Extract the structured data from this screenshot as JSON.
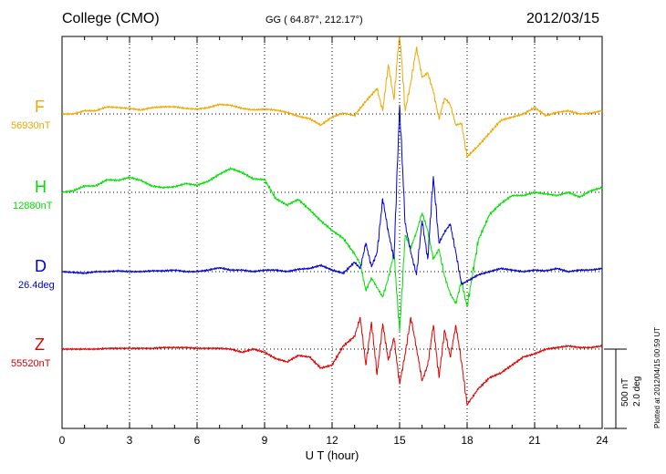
{
  "header": {
    "station": "College (CMO)",
    "coords": "GG ( 64.87°, 212.17°)",
    "date": "2012/03/15"
  },
  "components": [
    {
      "key": "F",
      "label": "F",
      "base": "56930nT",
      "color": "#f0a800"
    },
    {
      "key": "H",
      "label": "H",
      "base": "12880nT",
      "color": "#00e000"
    },
    {
      "key": "D",
      "label": "D",
      "base": "26.4deg",
      "color": "#0000d0"
    },
    {
      "key": "Z",
      "label": "Z",
      "base": "55520nT",
      "color": "#e00000"
    }
  ],
  "scale": {
    "nt": "500 nT",
    "deg": "2.0 deg"
  },
  "plotted": "Plotted at 2012/04/15 00:59 UT",
  "chart_data": {
    "type": "line",
    "title": "College (CMO)",
    "xlabel": "U T (hour)",
    "ylabel": "",
    "xlim": [
      0,
      24
    ],
    "xticks": [
      0,
      3,
      6,
      9,
      12,
      15,
      18,
      21,
      24
    ],
    "xtick_labels": [
      "0",
      "3",
      "6",
      "9",
      "12",
      "15",
      "18",
      "21",
      "24"
    ],
    "units": "nT",
    "grid": true,
    "series": [
      {
        "name": "F",
        "x": [
          0,
          0.5,
          1,
          1.5,
          2,
          2.5,
          3,
          3.5,
          4,
          4.5,
          5,
          5.5,
          6,
          6.5,
          7,
          7.5,
          8,
          8.5,
          9,
          9.5,
          10,
          10.5,
          11,
          11.5,
          12,
          12.5,
          13,
          13.5,
          14,
          14.25,
          14.5,
          14.75,
          15,
          15.25,
          15.5,
          15.75,
          16,
          16.25,
          16.5,
          16.75,
          17,
          17.25,
          17.5,
          17.75,
          18,
          18.5,
          19,
          19.5,
          20,
          20.5,
          21,
          21.5,
          22,
          22.5,
          23,
          23.5,
          24
        ],
        "y": [
          0,
          0,
          20,
          20,
          45,
          40,
          35,
          25,
          40,
          45,
          45,
          35,
          30,
          40,
          60,
          55,
          35,
          25,
          30,
          25,
          10,
          -15,
          -30,
          -70,
          -20,
          5,
          -10,
          80,
          160,
          20,
          310,
          90,
          520,
          20,
          200,
          420,
          230,
          260,
          140,
          -30,
          100,
          60,
          -70,
          -60,
          -270,
          -200,
          -120,
          -40,
          -20,
          0,
          40,
          -10,
          10,
          20,
          0,
          5,
          20
        ]
      },
      {
        "name": "H",
        "x": [
          0,
          0.5,
          1,
          1.5,
          2,
          2.5,
          3,
          3.5,
          4,
          4.5,
          5,
          5.5,
          6,
          6.5,
          7,
          7.5,
          8,
          8.5,
          9,
          9.5,
          10,
          10.5,
          11,
          11.5,
          12,
          12.5,
          13,
          13.25,
          13.5,
          13.75,
          14,
          14.25,
          14.5,
          14.75,
          15,
          15.25,
          15.5,
          15.75,
          16,
          16.25,
          16.5,
          16.75,
          17,
          17.25,
          17.5,
          17.75,
          18,
          18.5,
          19,
          19.5,
          20,
          20.5,
          21,
          21.5,
          22,
          22.5,
          23,
          23.5,
          24
        ],
        "y": [
          0,
          10,
          40,
          40,
          80,
          75,
          95,
          75,
          40,
          30,
          35,
          55,
          45,
          70,
          115,
          150,
          125,
          85,
          80,
          -40,
          -80,
          -45,
          -110,
          -180,
          -240,
          -290,
          -390,
          -450,
          -620,
          -540,
          -600,
          -660,
          -540,
          -380,
          -880,
          -270,
          -350,
          -250,
          -130,
          -240,
          -420,
          -360,
          -530,
          -640,
          -700,
          -560,
          -720,
          -300,
          -140,
          -70,
          -20,
          -20,
          0,
          -10,
          -20,
          0,
          -30,
          10,
          30
        ]
      },
      {
        "name": "D",
        "x": [
          0,
          0.5,
          1,
          1.5,
          2,
          2.5,
          3,
          3.5,
          4,
          4.5,
          5,
          5.5,
          6,
          6.5,
          7,
          7.5,
          8,
          8.5,
          9,
          9.5,
          10,
          10.5,
          11,
          11.5,
          12,
          12.5,
          13,
          13.25,
          13.5,
          13.75,
          14,
          14.25,
          14.5,
          14.75,
          15,
          15.25,
          15.5,
          15.75,
          16,
          16.25,
          16.5,
          16.75,
          17,
          17.25,
          17.5,
          17.75,
          18,
          18.5,
          19,
          19.5,
          20,
          20.5,
          21,
          21.5,
          22,
          22.5,
          23,
          23.5,
          24
        ],
        "y": [
          0,
          -5,
          -10,
          0,
          0,
          5,
          0,
          0,
          5,
          5,
          10,
          0,
          0,
          10,
          25,
          10,
          10,
          0,
          10,
          10,
          0,
          15,
          20,
          40,
          10,
          -10,
          60,
          20,
          180,
          30,
          120,
          460,
          250,
          80,
          1050,
          300,
          120,
          -20,
          320,
          80,
          600,
          180,
          250,
          300,
          120,
          -80,
          -60,
          -20,
          0,
          20,
          10,
          0,
          10,
          5,
          20,
          0,
          10,
          10,
          20
        ]
      },
      {
        "name": "Z",
        "x": [
          0,
          0.5,
          1,
          1.5,
          2,
          2.5,
          3,
          3.5,
          4,
          4.5,
          5,
          5.5,
          6,
          6.5,
          7,
          7.5,
          8,
          8.5,
          9,
          9.5,
          10,
          10.5,
          11,
          11.5,
          12,
          12.5,
          13,
          13.25,
          13.5,
          13.75,
          14,
          14.25,
          14.5,
          14.75,
          15,
          15.25,
          15.5,
          15.75,
          16,
          16.25,
          16.5,
          16.75,
          17,
          17.25,
          17.5,
          17.75,
          18,
          18.25,
          18.5,
          19,
          19.5,
          20,
          20.5,
          21,
          21.5,
          22,
          22.5,
          23,
          23.5,
          24
        ],
        "y": [
          0,
          0,
          0,
          0,
          5,
          5,
          5,
          5,
          5,
          10,
          10,
          10,
          5,
          5,
          5,
          0,
          -20,
          0,
          -20,
          -60,
          -80,
          -40,
          -50,
          -120,
          -100,
          20,
          80,
          200,
          -100,
          170,
          -160,
          160,
          -70,
          70,
          -220,
          -30,
          200,
          10,
          -200,
          -100,
          150,
          -180,
          120,
          -50,
          150,
          -80,
          -350,
          -300,
          -250,
          -180,
          -150,
          -100,
          -50,
          -30,
          0,
          10,
          20,
          10,
          10,
          20
        ]
      }
    ]
  }
}
